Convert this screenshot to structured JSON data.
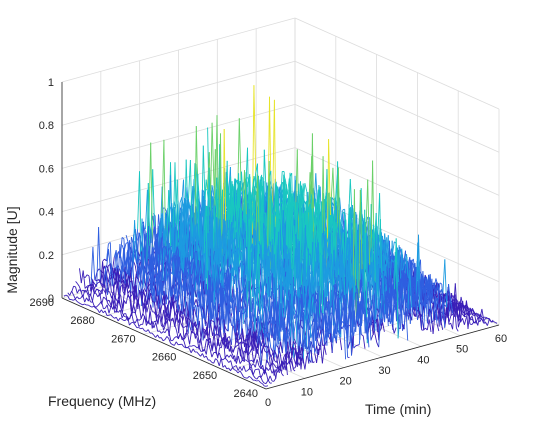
{
  "chart_data": {
    "type": "3d-waterfall",
    "title": "",
    "zlabel": "Magnitude [U]",
    "ylabel": "Frequency  (MHz)",
    "xlabel": "Time (min)",
    "zlim": [
      0,
      1
    ],
    "ylim": [
      2640,
      2690
    ],
    "xlim": [
      0,
      60
    ],
    "z_ticks": [
      "0",
      "0.2",
      "0.4",
      "0.6",
      "0.8",
      "1"
    ],
    "y_ticks": [
      "2640",
      "2650",
      "2660",
      "2670",
      "2680",
      "2690"
    ],
    "x_ticks": [
      "0",
      "10",
      "20",
      "30",
      "40",
      "50",
      "60"
    ],
    "grid": true,
    "colormap": [
      "#3a1fb8",
      "#2f5fe0",
      "#1d9be0",
      "#19c7c0",
      "#6ad068",
      "#e6e42a"
    ],
    "series_count": 60,
    "samples_per_series": 110,
    "peak_magnitude": 0.97,
    "typical_magnitude": 0.35
  }
}
